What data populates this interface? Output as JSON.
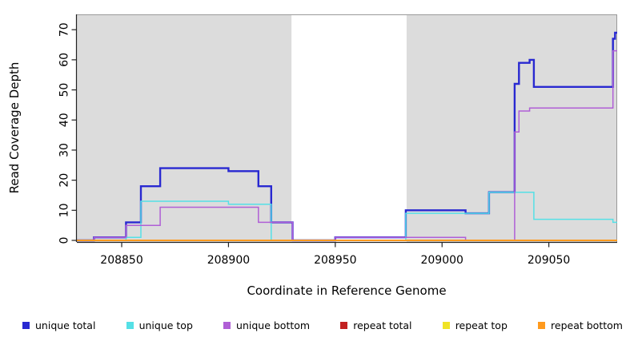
{
  "chart_data": {
    "type": "line",
    "subtype": "step-coverage",
    "title": "",
    "xlabel": "Coordinate in Reference Genome",
    "ylabel": "Read Coverage Depth",
    "xlim": [
      208829,
      209082
    ],
    "ylim": [
      0,
      70
    ],
    "x_ticks": [
      208850,
      208900,
      208950,
      209000,
      209050
    ],
    "y_ticks": [
      0,
      10,
      20,
      30,
      40,
      50,
      60,
      70
    ],
    "grid": false,
    "plot_background": "#ffffff",
    "band_color": "#dcdcdc",
    "background_bands": [
      {
        "x0": 208829,
        "x1": 208929.5
      },
      {
        "x0": 208983.4,
        "x1": 209082
      }
    ],
    "series": [
      {
        "name": "unique total",
        "color": "#2929d1",
        "line_width": 2.4,
        "points": [
          [
            208829,
            0
          ],
          [
            208837,
            1
          ],
          [
            208852,
            6
          ],
          [
            208859,
            18
          ],
          [
            208868,
            24
          ],
          [
            208900,
            23
          ],
          [
            208914,
            18
          ],
          [
            208920,
            6
          ],
          [
            208930,
            0
          ],
          [
            208950,
            1
          ],
          [
            208983,
            10
          ],
          [
            209011,
            9
          ],
          [
            209022,
            16
          ],
          [
            209034,
            52
          ],
          [
            209036,
            59
          ],
          [
            209041,
            60
          ],
          [
            209043,
            51
          ],
          [
            209080,
            67
          ],
          [
            209081,
            69
          ],
          [
            209082,
            69
          ]
        ]
      },
      {
        "name": "unique top",
        "color": "#55e0e6",
        "line_width": 1.5,
        "points": [
          [
            208829,
            0
          ],
          [
            208852,
            1
          ],
          [
            208859,
            13
          ],
          [
            208900,
            12
          ],
          [
            208920,
            0
          ],
          [
            208983,
            9
          ],
          [
            209022,
            16
          ],
          [
            209043,
            7
          ],
          [
            209080,
            6
          ],
          [
            209082,
            6
          ]
        ]
      },
      {
        "name": "unique bottom",
        "color": "#b05fd6",
        "line_width": 1.5,
        "points": [
          [
            208829,
            0
          ],
          [
            208837,
            1
          ],
          [
            208852,
            5
          ],
          [
            208868,
            11
          ],
          [
            208914,
            6
          ],
          [
            208930,
            0
          ],
          [
            208950,
            1
          ],
          [
            209011,
            0
          ],
          [
            209034,
            36
          ],
          [
            209036,
            43
          ],
          [
            209041,
            44
          ],
          [
            209080,
            63
          ],
          [
            209082,
            63
          ]
        ]
      },
      {
        "name": "repeat total",
        "color": "#c22121",
        "line_width": 1.5,
        "points": [
          [
            208829,
            0
          ],
          [
            209082,
            0
          ]
        ]
      },
      {
        "name": "repeat top",
        "color": "#f0e326",
        "line_width": 1.5,
        "points": [
          [
            208829,
            0
          ],
          [
            209082,
            0
          ]
        ]
      },
      {
        "name": "repeat bottom",
        "color": "#ff9a1e",
        "line_width": 2,
        "points": [
          [
            208829,
            0
          ],
          [
            209082,
            0
          ]
        ]
      }
    ]
  },
  "legend": {
    "items": [
      {
        "label": "unique total",
        "color": "#2929d1"
      },
      {
        "label": "unique top",
        "color": "#55e0e6"
      },
      {
        "label": "unique bottom",
        "color": "#b05fd6"
      },
      {
        "label": "repeat total",
        "color": "#c22121"
      },
      {
        "label": "repeat top",
        "color": "#f0e326"
      },
      {
        "label": "repeat bottom",
        "color": "#ff9a1e"
      }
    ]
  }
}
